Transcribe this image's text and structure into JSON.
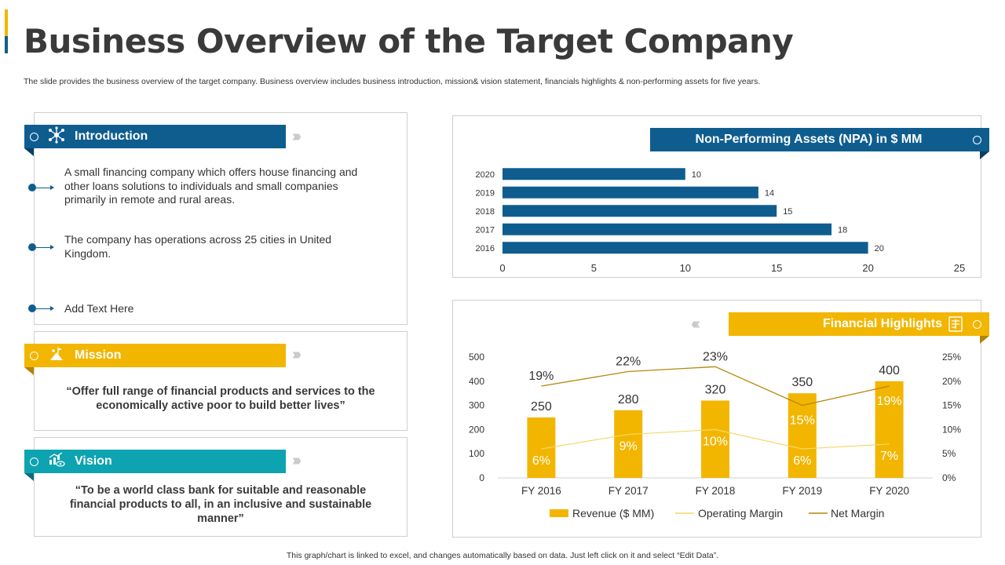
{
  "header": {
    "title": "Business Overview of the Target Company",
    "subtitle": "The slide provides the business overview of the target company. Business overview includes business introduction, mission& vision statement, financials highlights & non-performing assets for five years."
  },
  "footer": {
    "note": "This graph/chart is linked to excel,  and changes automatically based on data. Just left click on it and select “Edit Data”."
  },
  "colors": {
    "blue": "#0f5d8f",
    "gold": "#f2b600",
    "teal": "#0ea3b0"
  },
  "introduction": {
    "label": "Introduction",
    "icon": "network-icon",
    "bullets": [
      "A small financing company which offers house financing and other loans solutions to individuals and small companies primarily in remote and rural areas.",
      "The company has operations across 25 cities in United Kingdom.",
      "Add Text Here"
    ]
  },
  "mission": {
    "label": "Mission",
    "icon": "climber-flag-icon",
    "text": "“Offer full range of financial products and services to the economically active poor to build better lives”"
  },
  "vision": {
    "label": "Vision",
    "icon": "chart-eye-icon",
    "text": "“To be a world class bank for suitable and reasonable financial products to all, in an inclusive and sustainable manner”"
  },
  "chart_data": [
    {
      "type": "bar",
      "orientation": "horizontal",
      "title": "Non-Performing Assets (NPA) in $ MM",
      "categories": [
        "2020",
        "2019",
        "2018",
        "2017",
        "2016"
      ],
      "values": [
        10,
        14,
        15,
        18,
        20
      ],
      "xlim": [
        0,
        25
      ],
      "xticks": [
        0,
        5,
        10,
        15,
        20,
        25
      ],
      "color": "#0f5d8f",
      "grid": false
    },
    {
      "type": "bar",
      "title": "Financial Highlights",
      "categories": [
        "FY 2016",
        "FY 2017",
        "FY 2018",
        "FY 2019",
        "FY 2020"
      ],
      "series": [
        {
          "name": "Revenue ($ MM)",
          "type": "bar",
          "values": [
            250,
            280,
            320,
            350,
            400
          ],
          "color": "#f2b600",
          "axis": "left"
        },
        {
          "name": "Operating Margin",
          "type": "line",
          "values": [
            6,
            9,
            10,
            6,
            7
          ],
          "labels": [
            "6%",
            "9%",
            "10%",
            "6%",
            "7%"
          ],
          "color": "#f5d76e",
          "axis": "right"
        },
        {
          "name": "Net Margin",
          "type": "line",
          "values": [
            19,
            22,
            23,
            15,
            19
          ],
          "labels": [
            "19%",
            "22%",
            "23%",
            "15%",
            "19%"
          ],
          "color": "#b8860b",
          "axis": "right"
        }
      ],
      "ylim": [
        0,
        500
      ],
      "yticks": [
        0,
        100,
        200,
        300,
        400,
        500
      ],
      "y2lim": [
        0,
        25
      ],
      "y2ticks": [
        "0%",
        "5%",
        "10%",
        "15%",
        "20%",
        "25%"
      ],
      "legend": "bottom",
      "grid": false
    }
  ]
}
